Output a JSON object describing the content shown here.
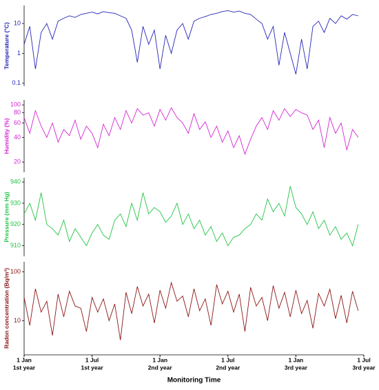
{
  "chart_data": [
    {
      "type": "line",
      "ylabel": "Temperature (°C)",
      "log": true,
      "color": "#2424b8",
      "ylim": [
        0.08,
        40
      ],
      "yticks": [
        0.1,
        1,
        10
      ],
      "x": [
        0,
        0.5,
        1,
        1.5,
        2,
        2.5,
        3,
        3.5,
        4,
        4.5,
        5,
        5.5,
        6,
        6.5,
        7,
        7.5,
        8,
        8.5,
        9,
        9.5,
        10,
        10.5,
        11,
        11.5,
        12,
        12.5,
        13,
        13.5,
        14,
        14.5,
        15,
        15.5,
        16,
        16.5,
        17,
        17.5,
        18,
        18.5,
        19,
        19.5,
        20,
        20.5,
        21,
        21.5,
        22,
        22.5,
        23,
        23.5,
        24,
        24.5,
        25,
        25.5,
        26,
        26.5,
        27,
        27.5,
        28,
        28.5,
        29,
        29.5
      ],
      "values": [
        2,
        8,
        0.3,
        5,
        10,
        3,
        12,
        15,
        18,
        16,
        20,
        22,
        24,
        21,
        25,
        23,
        22,
        18,
        15,
        6,
        0.5,
        8,
        2,
        6,
        0.3,
        4,
        1,
        6,
        10,
        3,
        12,
        15,
        17,
        20,
        22,
        25,
        27,
        24,
        26,
        22,
        20,
        14,
        10,
        3,
        8,
        0.4,
        5,
        1,
        0.2,
        3,
        0.3,
        8,
        12,
        5,
        15,
        10,
        18,
        14,
        20,
        18
      ]
    },
    {
      "type": "line",
      "ylabel": "Humidity (%)",
      "log": true,
      "color": "#d424d4",
      "ylim": [
        15,
        115
      ],
      "yticks": [
        20,
        40,
        60,
        80,
        100
      ],
      "x": [
        0,
        0.5,
        1,
        1.5,
        2,
        2.5,
        3,
        3.5,
        4,
        4.5,
        5,
        5.5,
        6,
        6.5,
        7,
        7.5,
        8,
        8.5,
        9,
        9.5,
        10,
        10.5,
        11,
        11.5,
        12,
        12.5,
        13,
        13.5,
        14,
        14.5,
        15,
        15.5,
        16,
        16.5,
        17,
        17.5,
        18,
        18.5,
        19,
        19.5,
        20,
        20.5,
        21,
        21.5,
        22,
        22.5,
        23,
        23.5,
        24,
        24.5,
        25,
        25.5,
        26,
        26.5,
        27,
        27.5,
        28,
        28.5,
        29,
        29.5
      ],
      "values": [
        70,
        45,
        85,
        55,
        40,
        60,
        35,
        50,
        42,
        65,
        38,
        55,
        45,
        30,
        58,
        42,
        70,
        50,
        85,
        60,
        90,
        75,
        80,
        55,
        88,
        65,
        92,
        70,
        60,
        45,
        78,
        50,
        62,
        40,
        55,
        35,
        48,
        30,
        42,
        25,
        38,
        55,
        70,
        50,
        85,
        65,
        90,
        72,
        88,
        80,
        75,
        50,
        65,
        30,
        70,
        45,
        60,
        28,
        50,
        40
      ]
    },
    {
      "type": "line",
      "ylabel": "Pressure (mm Hg)",
      "log": false,
      "color": "#22c444",
      "ylim": [
        905,
        942
      ],
      "yticks": [
        910,
        920,
        930,
        940
      ],
      "x": [
        0,
        0.5,
        1,
        1.5,
        2,
        2.5,
        3,
        3.5,
        4,
        4.5,
        5,
        5.5,
        6,
        6.5,
        7,
        7.5,
        8,
        8.5,
        9,
        9.5,
        10,
        10.5,
        11,
        11.5,
        12,
        12.5,
        13,
        13.5,
        14,
        14.5,
        15,
        15.5,
        16,
        16.5,
        17,
        17.5,
        18,
        18.5,
        19,
        19.5,
        20,
        20.5,
        21,
        21.5,
        22,
        22.5,
        23,
        23.5,
        24,
        24.5,
        25,
        25.5,
        26,
        26.5,
        27,
        27.5,
        28,
        28.5,
        29,
        29.5
      ],
      "values": [
        925,
        930,
        922,
        935,
        920,
        918,
        915,
        922,
        912,
        918,
        914,
        910,
        916,
        920,
        915,
        913,
        922,
        925,
        919,
        930,
        922,
        935,
        925,
        928,
        926,
        921,
        924,
        930,
        920,
        925,
        918,
        922,
        915,
        919,
        912,
        916,
        910,
        914,
        915,
        918,
        920,
        925,
        922,
        932,
        926,
        930,
        924,
        938,
        928,
        925,
        920,
        926,
        918,
        922,
        915,
        919,
        913,
        916,
        910,
        920
      ]
    },
    {
      "type": "line",
      "ylabel": "Radon concentration (Bq/m³)",
      "log": true,
      "color": "#8b1414",
      "ylim": [
        2,
        160
      ],
      "yticks": [
        10,
        100
      ],
      "x": [
        0,
        0.5,
        1,
        1.5,
        2,
        2.5,
        3,
        3.5,
        4,
        4.5,
        5,
        5.5,
        6,
        6.5,
        7,
        7.5,
        8,
        8.5,
        9,
        9.5,
        10,
        10.5,
        11,
        11.5,
        12,
        12.5,
        13,
        13.5,
        14,
        14.5,
        15,
        15.5,
        16,
        16.5,
        17,
        17.5,
        18,
        18.5,
        19,
        19.5,
        20,
        20.5,
        21,
        21.5,
        22,
        22.5,
        23,
        23.5,
        24,
        24.5,
        25,
        25.5,
        26,
        26.5,
        27,
        27.5,
        28,
        28.5,
        29,
        29.5
      ],
      "values": [
        30,
        8,
        45,
        15,
        25,
        5,
        35,
        12,
        40,
        20,
        18,
        6,
        30,
        15,
        28,
        10,
        22,
        4,
        38,
        14,
        50,
        20,
        35,
        9,
        42,
        18,
        60,
        25,
        32,
        12,
        45,
        16,
        28,
        8,
        55,
        22,
        40,
        15,
        35,
        6,
        48,
        20,
        30,
        10,
        52,
        18,
        38,
        12,
        42,
        14,
        26,
        7,
        36,
        20,
        44,
        11,
        33,
        9,
        40,
        16
      ],
      "xlabel": "Monitoring Time",
      "xlim": [
        0,
        30
      ],
      "xticks": [
        {
          "value": 0,
          "label": "1 Jan",
          "year": "1st year"
        },
        {
          "value": 6,
          "label": "1 Jul",
          "year": "1st year"
        },
        {
          "value": 12,
          "label": "1 Jan",
          "year": "2nd year"
        },
        {
          "value": 18,
          "label": "1 Jul",
          "year": "2nd year"
        },
        {
          "value": 24,
          "label": "1 Jan",
          "year": "3rd year"
        },
        {
          "value": 30,
          "label": "1 Jul",
          "year": "3rd year"
        }
      ]
    }
  ]
}
